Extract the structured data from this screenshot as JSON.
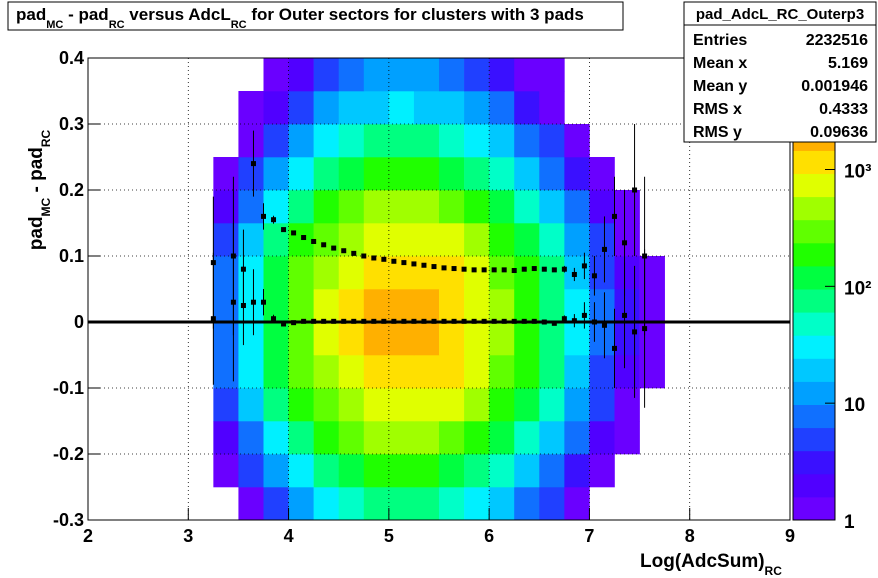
{
  "chart_data": {
    "type": "heatmap",
    "title": [
      "pad",
      "MC",
      " - pad",
      "RC",
      " versus AdcL",
      "RC",
      " for Outer sectors for clusters with 3 pads"
    ],
    "xlabel": [
      "Log(AdcSum)",
      "RC"
    ],
    "ylabel": [
      "pad",
      "MC",
      " - pad",
      "RC"
    ],
    "xlim": [
      2,
      9
    ],
    "ylim": [
      -0.3,
      0.4
    ],
    "xticks": [
      2,
      3,
      4,
      5,
      6,
      7,
      8,
      9
    ],
    "yticks": [
      -0.3,
      -0.2,
      -0.1,
      0,
      0.1,
      0.2,
      0.3,
      0.4
    ],
    "grid": true,
    "xbins": [
      3.25,
      3.5,
      3.75,
      4,
      4.25,
      4.5,
      4.75,
      5,
      5.25,
      5.5,
      5.75,
      6,
      6.25,
      6.5,
      6.75,
      7,
      7.25,
      7.5,
      7.75
    ],
    "ybins": [
      -0.3,
      -0.25,
      -0.2,
      -0.15,
      -0.1,
      -0.05,
      0,
      0.05,
      0.1,
      0.15,
      0.2,
      0.25,
      0.3,
      0.35,
      0.4
    ],
    "z": [
      [
        0,
        1,
        6,
        14,
        29,
        47,
        65,
        72,
        65,
        50,
        32,
        18,
        9,
        4,
        1,
        0,
        0,
        0
      ],
      [
        1,
        4,
        14,
        36,
        72,
        117,
        162,
        180,
        162,
        126,
        81,
        45,
        22,
        9,
        3,
        1,
        0,
        0
      ],
      [
        2,
        9,
        36,
        90,
        180,
        293,
        405,
        450,
        405,
        315,
        203,
        113,
        54,
        23,
        7,
        2,
        1,
        0
      ],
      [
        5,
        18,
        72,
        180,
        360,
        585,
        810,
        900,
        810,
        630,
        405,
        225,
        108,
        45,
        14,
        4,
        1,
        0
      ],
      [
        7,
        28,
        112,
        281,
        562,
        913,
        1264,
        1404,
        1264,
        983,
        632,
        351,
        168,
        70,
        21,
        6,
        2,
        1
      ],
      [
        9,
        35,
        141,
        353,
        706,
        1147,
        1588,
        1764,
        1588,
        1235,
        794,
        441,
        212,
        88,
        26,
        7,
        3,
        1
      ],
      [
        9,
        35,
        141,
        353,
        706,
        1147,
        1588,
        1764,
        1588,
        1235,
        794,
        441,
        212,
        88,
        26,
        7,
        3,
        1
      ],
      [
        7,
        28,
        112,
        281,
        562,
        913,
        1264,
        1404,
        1264,
        983,
        632,
        351,
        168,
        70,
        21,
        6,
        2,
        1
      ],
      [
        5,
        18,
        72,
        180,
        360,
        585,
        810,
        900,
        810,
        630,
        405,
        225,
        108,
        45,
        14,
        4,
        1,
        0
      ],
      [
        2,
        9,
        36,
        90,
        180,
        293,
        405,
        450,
        405,
        315,
        203,
        113,
        54,
        23,
        7,
        2,
        1,
        0
      ],
      [
        1,
        4,
        14,
        36,
        72,
        117,
        162,
        180,
        162,
        126,
        81,
        45,
        22,
        9,
        3,
        1,
        0,
        0
      ],
      [
        0,
        1,
        6,
        14,
        29,
        47,
        65,
        72,
        65,
        50,
        32,
        18,
        9,
        4,
        1,
        0,
        0,
        0
      ],
      [
        0,
        1,
        2,
        5,
        11,
        18,
        24,
        27,
        24,
        19,
        12,
        7,
        3,
        1,
        0,
        0,
        0,
        0
      ],
      [
        0,
        0,
        1,
        2,
        4,
        7,
        10,
        11,
        10,
        8,
        5,
        3,
        1,
        1,
        0,
        0,
        0,
        0
      ]
    ],
    "zlim": [
      1,
      9000
    ],
    "zlog": true,
    "zticks": [
      1,
      10,
      {
        "value": 100,
        "label": "10²"
      },
      {
        "value": 1000,
        "label": "10³"
      }
    ],
    "colorscale": [
      "#6a00ff",
      "#5000ff",
      "#3a10ff",
      "#2040ff",
      "#1070ff",
      "#00a0ff",
      "#00c8ff",
      "#00f0ff",
      "#00ffc8",
      "#00ff80",
      "#00ff40",
      "#20ff00",
      "#60ff00",
      "#a0ff00",
      "#e0ff00",
      "#ffe000",
      "#ffb000",
      "#ff8000",
      "#ff4000",
      "#ff0000"
    ],
    "hline": 0,
    "profile_x": [
      3.25,
      3.45,
      3.55,
      3.65,
      3.75,
      3.85,
      3.95,
      4.05,
      4.15,
      4.25,
      4.35,
      4.45,
      4.55,
      4.65,
      4.75,
      4.85,
      4.95,
      5.05,
      5.15,
      5.25,
      5.35,
      5.45,
      5.55,
      5.65,
      5.75,
      5.85,
      5.95,
      6.05,
      6.15,
      6.25,
      6.35,
      6.45,
      6.55,
      6.65,
      6.75,
      6.85,
      6.95,
      7.05,
      7.15,
      7.25,
      7.35,
      7.45,
      7.55
    ],
    "series": [
      {
        "color": "#000000",
        "values": [
          0.09,
          0.1,
          0.08,
          0.24,
          0.16,
          0.155,
          0.14,
          0.135,
          0.128,
          0.122,
          0.117,
          0.112,
          0.108,
          0.104,
          0.1,
          0.097,
          0.095,
          0.092,
          0.09,
          0.088,
          0.086,
          0.084,
          0.082,
          0.081,
          0.08,
          0.079,
          0.079,
          0.079,
          0.079,
          0.078,
          0.08,
          0.081,
          0.08,
          0.079,
          0.08,
          0.072,
          0.085,
          0.07,
          0.11,
          0.16,
          0.12,
          0.2,
          0.1
        ],
        "errors": [
          0.1,
          0.12,
          0.06,
          0.05,
          0.02,
          0.006,
          0.003,
          0.003,
          0.003,
          0.003,
          0.003,
          0.003,
          0.003,
          0.003,
          0.003,
          0.003,
          0.003,
          0.003,
          0.003,
          0.003,
          0.003,
          0.003,
          0.003,
          0.003,
          0.003,
          0.003,
          0.003,
          0.003,
          0.003,
          0.003,
          0.003,
          0.003,
          0.003,
          0.003,
          0.005,
          0.01,
          0.02,
          0.03,
          0.05,
          0.06,
          0.08,
          0.1,
          0.12
        ]
      },
      {
        "color": "#000000",
        "values": [
          0.005,
          0.03,
          0.025,
          0.03,
          0.03,
          0.005,
          -0.003,
          -0.001,
          0.001,
          0.001,
          0.001,
          0.001,
          0.001,
          0.001,
          0.001,
          0.001,
          0.001,
          0.001,
          0.001,
          0.001,
          0.001,
          0.001,
          0.001,
          0.001,
          0.001,
          0.001,
          0.001,
          0.001,
          0.001,
          0.001,
          0.001,
          0.001,
          0,
          -0.002,
          0.005,
          0.002,
          0.01,
          0,
          -0.005,
          -0.04,
          0.01,
          -0.015,
          -0.01
        ],
        "errors": [
          0.1,
          0.12,
          0.06,
          0.05,
          0.02,
          0.006,
          0.003,
          0.003,
          0.003,
          0.003,
          0.003,
          0.003,
          0.003,
          0.003,
          0.003,
          0.003,
          0.003,
          0.003,
          0.003,
          0.003,
          0.003,
          0.003,
          0.003,
          0.003,
          0.003,
          0.003,
          0.003,
          0.003,
          0.003,
          0.003,
          0.003,
          0.003,
          0.003,
          0.003,
          0.005,
          0.01,
          0.02,
          0.03,
          0.05,
          0.06,
          0.08,
          0.1,
          0.12
        ]
      }
    ],
    "stats": {
      "title": "pad_AdcL_RC_Outerp3",
      "rows": [
        [
          "Entries",
          2232516
        ],
        [
          "Mean x",
          5.169
        ],
        [
          "Mean y",
          0.001946
        ],
        [
          "RMS x",
          0.4333
        ],
        [
          "RMS y",
          0.09636
        ]
      ]
    }
  }
}
